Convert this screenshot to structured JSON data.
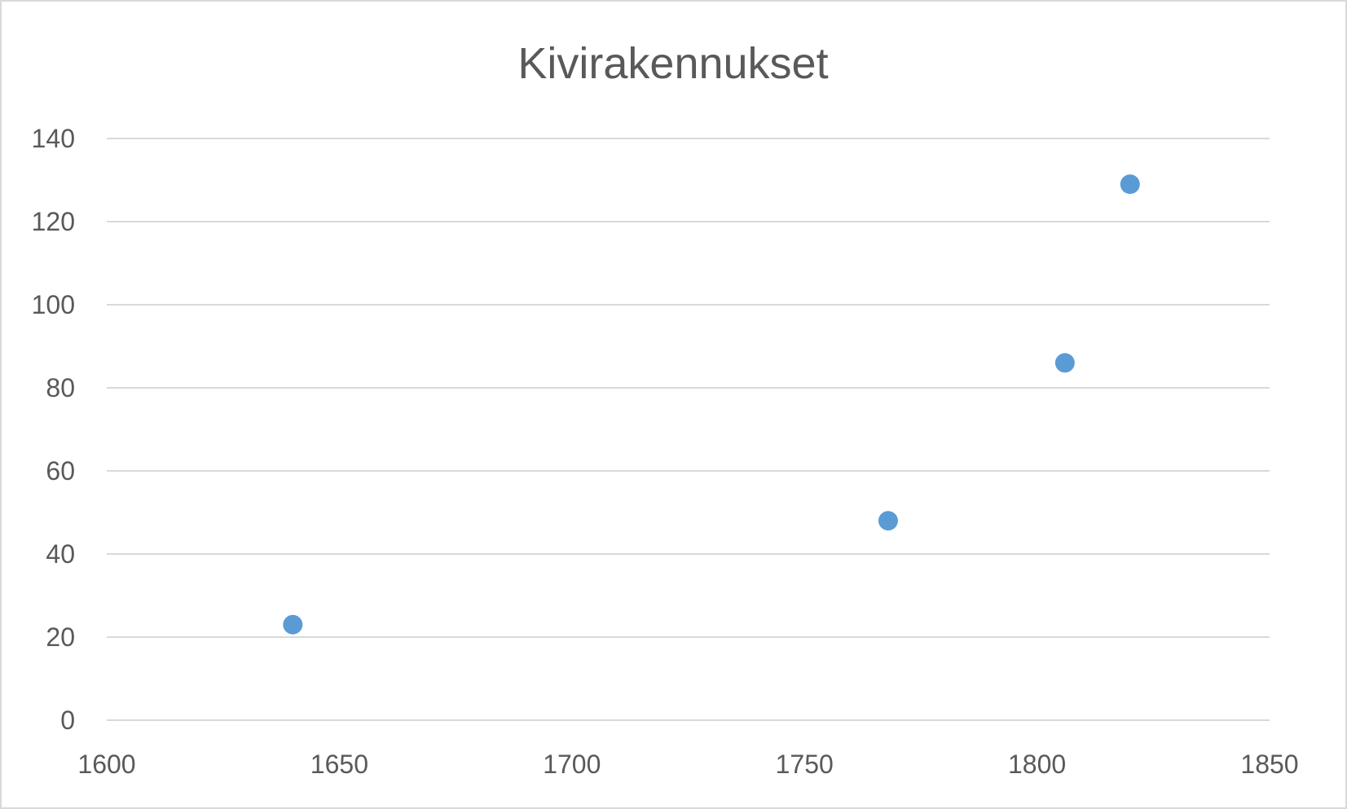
{
  "chart_data": {
    "type": "scatter",
    "title": "Kivirakennukset",
    "xlabel": "",
    "ylabel": "",
    "xlim": [
      1600,
      1850
    ],
    "ylim": [
      0,
      140
    ],
    "x_ticks": [
      "1600",
      "1650",
      "1700",
      "1750",
      "1800",
      "1850"
    ],
    "y_ticks": [
      "0",
      "20",
      "40",
      "60",
      "80",
      "100",
      "120",
      "140"
    ],
    "grid": true,
    "legend": "none",
    "marker_color": "#5b9bd5",
    "series": [
      {
        "points": [
          {
            "x": 1640,
            "y": 23
          },
          {
            "x": 1768,
            "y": 48
          },
          {
            "x": 1806,
            "y": 86
          },
          {
            "x": 1820,
            "y": 129
          }
        ]
      }
    ]
  }
}
